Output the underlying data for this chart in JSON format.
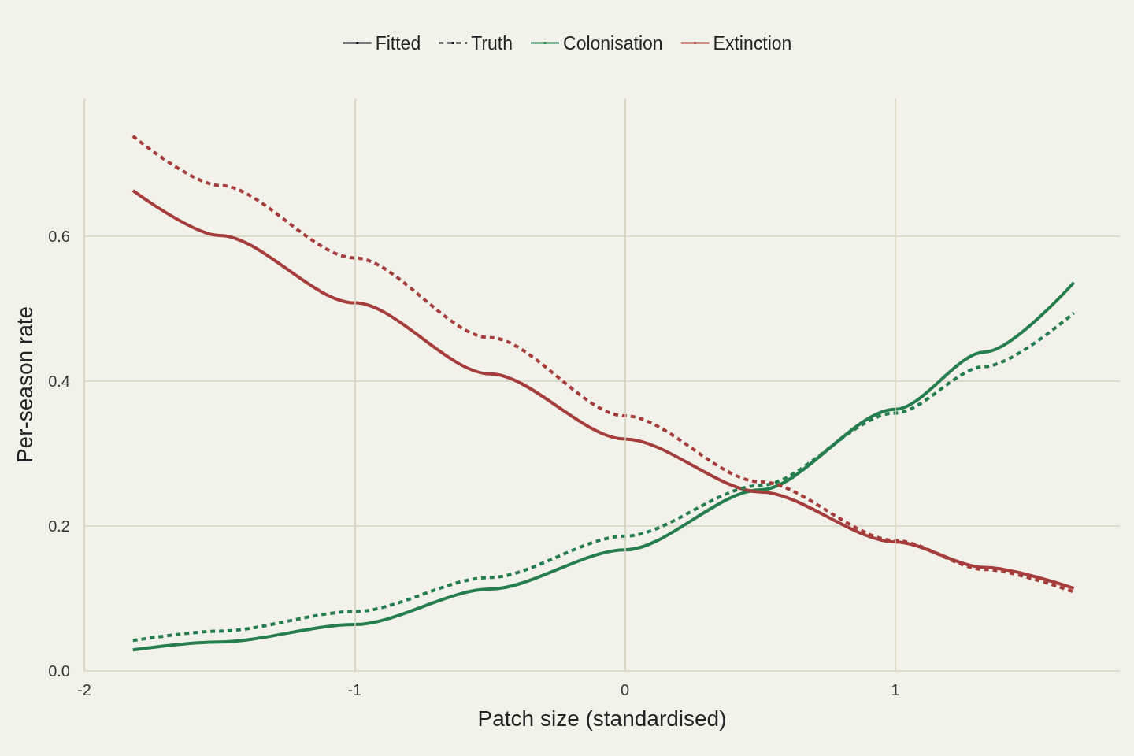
{
  "chart_data": {
    "type": "line",
    "xlabel": "Patch size (standardised)",
    "ylabel": "Per-season rate",
    "x": [
      -1.82,
      -1.5,
      -1,
      -0.5,
      0,
      0.5,
      1,
      1.33,
      1.66
    ],
    "xlim": [
      -2,
      1.83
    ],
    "xticks": [
      -2,
      -1,
      0,
      1
    ],
    "ylim": [
      0,
      0.79
    ],
    "yticks": [
      {
        "value": 0,
        "label": "0.0"
      },
      {
        "value": 0.2,
        "label": "0.2"
      },
      {
        "value": 0.4,
        "label": "0.4"
      },
      {
        "value": 0.6,
        "label": "0.6"
      }
    ],
    "grid": true,
    "legend": "top",
    "marker": "none",
    "series": [
      {
        "name": "Fitted",
        "color": "#000000",
        "line_style": "solid",
        "values": [
          null,
          null,
          null,
          null,
          null,
          null,
          null,
          null,
          null
        ]
      },
      {
        "name": "Truth",
        "color": "#000000",
        "line_style": "dashed",
        "values": [
          null,
          null,
          null,
          null,
          null,
          null,
          null,
          null,
          null
        ]
      },
      {
        "name": "Colonisation",
        "color": "#267d4e",
        "line_style": "solid",
        "values": [
          0.029,
          0.04,
          0.064,
          0.113,
          0.167,
          0.25,
          0.361,
          0.44,
          0.536
        ]
      },
      {
        "name": "Extinction",
        "color": "#a63d3d",
        "line_style": "solid",
        "values": [
          0.663,
          0.601,
          0.508,
          0.41,
          0.32,
          0.247,
          0.178,
          0.143,
          0.114
        ]
      },
      {
        "color": "#267d4e",
        "line_style": "dashed",
        "values": [
          0.042,
          0.055,
          0.082,
          0.129,
          0.186,
          0.256,
          0.356,
          0.42,
          0.494
        ]
      },
      {
        "color": "#a63d3d",
        "line_style": "dashed",
        "values": [
          0.738,
          0.67,
          0.57,
          0.46,
          0.352,
          0.261,
          0.18,
          0.14,
          0.109
        ]
      }
    ]
  }
}
